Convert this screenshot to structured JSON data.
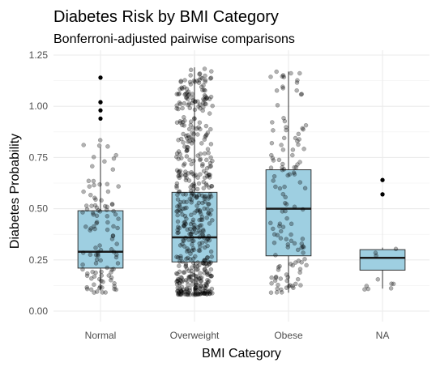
{
  "chart_data": {
    "type": "box",
    "title": "Diabetes Risk by BMI Category",
    "subtitle": "Bonferroni-adjusted pairwise comparisons",
    "xlabel": "BMI Category",
    "ylabel": "Diabetes Probability",
    "ylim": [
      0,
      1.25
    ],
    "yticks": [
      0.0,
      0.25,
      0.5,
      0.75,
      1.0,
      1.25
    ],
    "ytick_labels": [
      "0.00",
      "0.25",
      "0.50",
      "0.75",
      "1.00",
      "1.25"
    ],
    "categories": [
      "Normal",
      "Overweight",
      "Obese",
      "NA"
    ],
    "grid": true,
    "legend": "none",
    "box_fill": "#9ecfe1",
    "point_color": "#000000",
    "boxes": [
      {
        "category": "Normal",
        "q1": 0.21,
        "median": 0.29,
        "q3": 0.49,
        "whisker_low": 0.1,
        "whisker_high": 0.8,
        "outliers": [
          1.14,
          1.14,
          1.02,
          1.02,
          0.98,
          0.94
        ],
        "jitter_count": 110,
        "jitter_low": 0.09,
        "jitter_high": 0.84
      },
      {
        "category": "Overweight",
        "q1": 0.24,
        "median": 0.36,
        "q3": 0.58,
        "whisker_low": 0.08,
        "whisker_high": 1.19,
        "outliers": [],
        "jitter_count": 520,
        "jitter_low": 0.08,
        "jitter_high": 1.19
      },
      {
        "category": "Obese",
        "q1": 0.27,
        "median": 0.5,
        "q3": 0.69,
        "whisker_low": 0.09,
        "whisker_high": 1.17,
        "outliers": [],
        "jitter_count": 130,
        "jitter_low": 0.09,
        "jitter_high": 1.17
      },
      {
        "category": "NA",
        "q1": 0.2,
        "median": 0.26,
        "q3": 0.3,
        "whisker_low": 0.11,
        "whisker_high": 0.31,
        "outliers": [
          0.64,
          0.64,
          0.57,
          0.57
        ],
        "jitter_count": 10,
        "jitter_low": 0.1,
        "jitter_high": 0.31
      }
    ]
  }
}
